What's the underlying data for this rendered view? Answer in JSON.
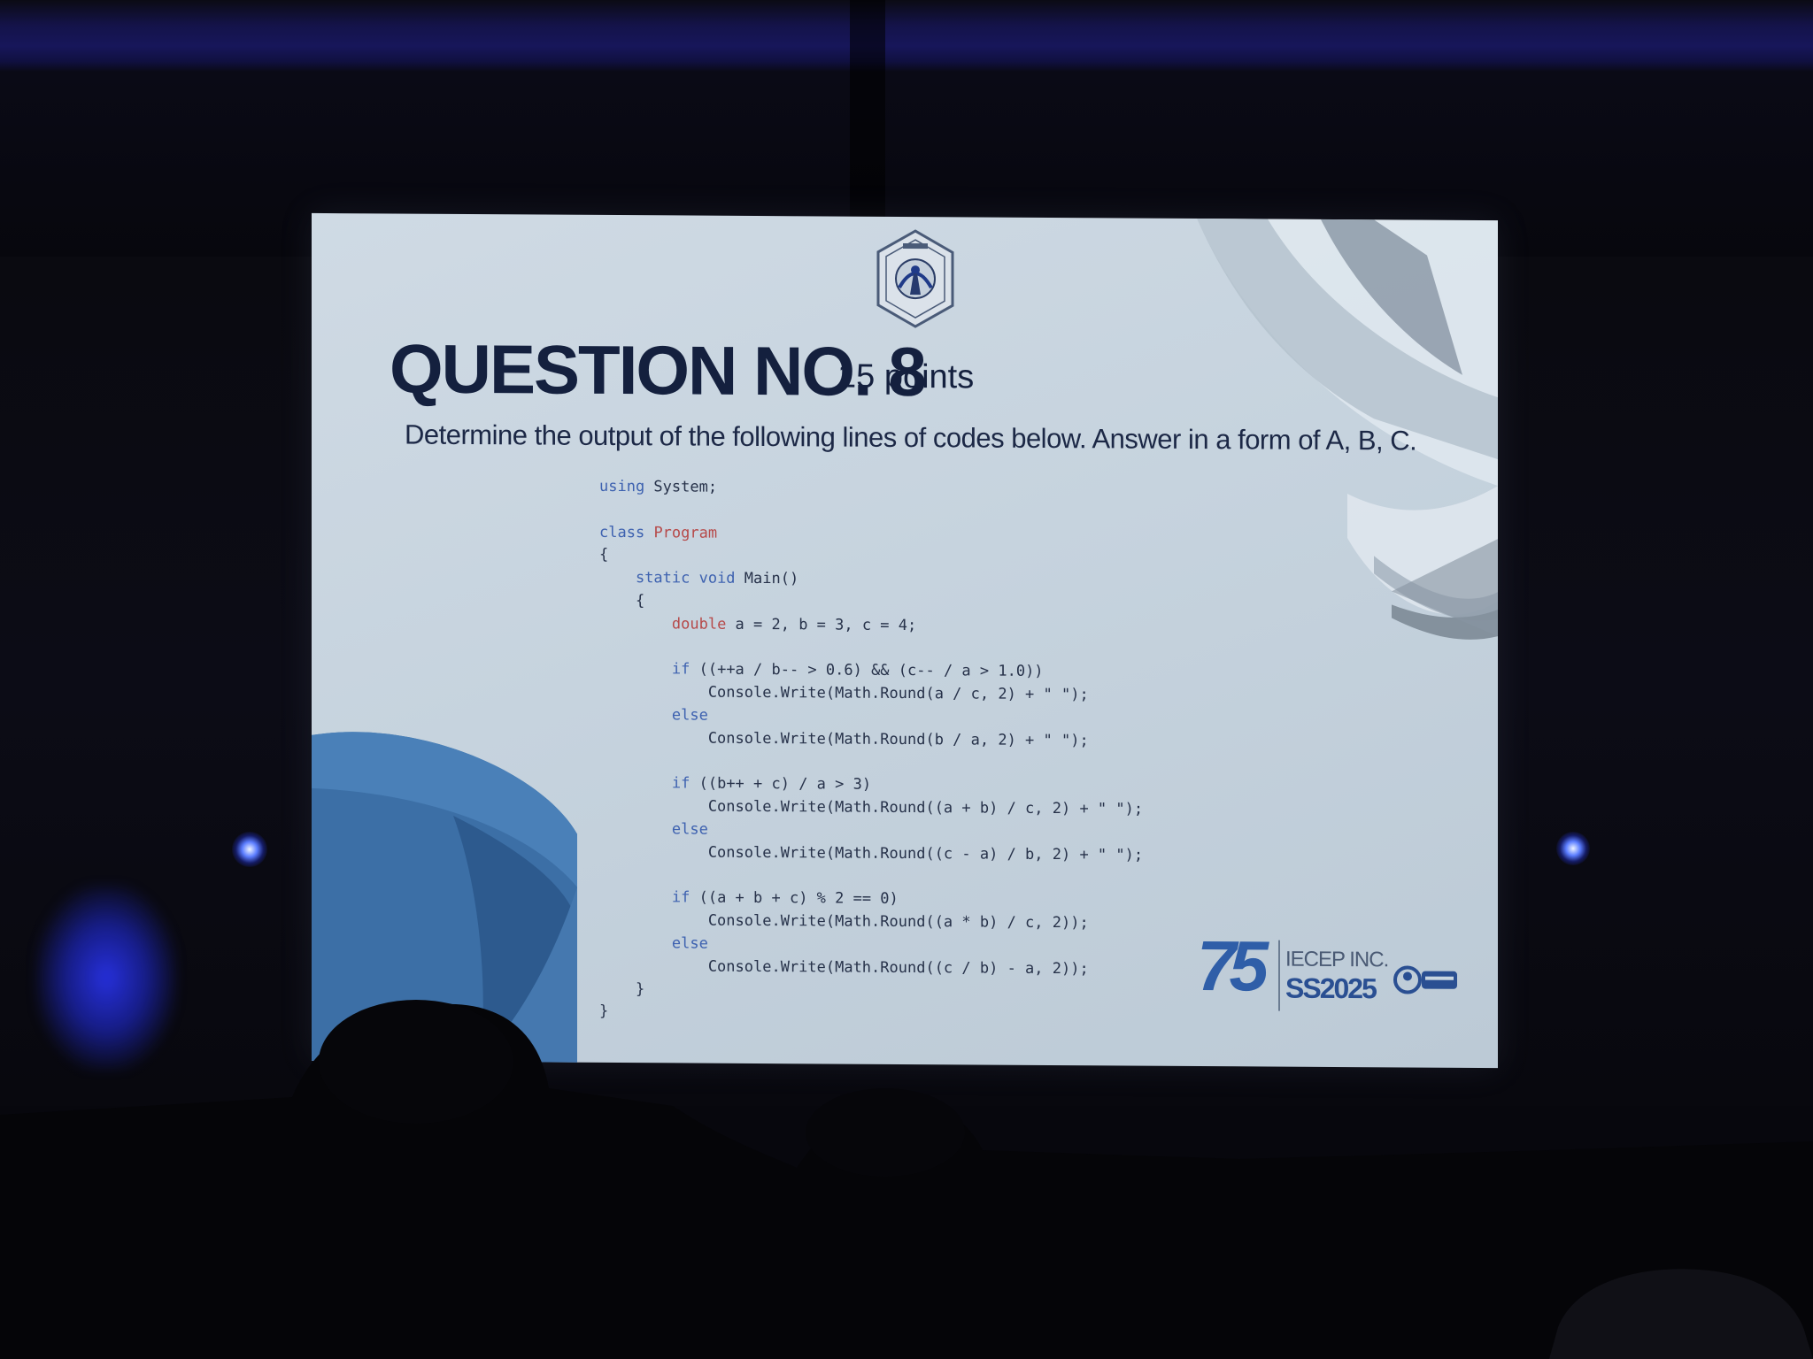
{
  "slide": {
    "title": "QUESTION NO. 8",
    "points": "15 points",
    "instruction": "Determine the output of the following lines of codes below. Answer in a form of A, B, C.",
    "code_lines": [
      [
        {
          "t": "using",
          "c": "kw"
        },
        {
          "t": " System;",
          "c": ""
        }
      ],
      [],
      [
        {
          "t": "class",
          "c": "kw"
        },
        {
          "t": " ",
          "c": ""
        },
        {
          "t": "Program",
          "c": "cls"
        }
      ],
      [
        {
          "t": "{",
          "c": ""
        }
      ],
      [
        {
          "t": "    ",
          "c": ""
        },
        {
          "t": "static void",
          "c": "kw"
        },
        {
          "t": " Main()",
          "c": ""
        }
      ],
      [
        {
          "t": "    {",
          "c": ""
        }
      ],
      [
        {
          "t": "        ",
          "c": ""
        },
        {
          "t": "double",
          "c": "lit"
        },
        {
          "t": " a = 2, b = 3, c = 4;",
          "c": ""
        }
      ],
      [],
      [
        {
          "t": "        ",
          "c": ""
        },
        {
          "t": "if",
          "c": "kw"
        },
        {
          "t": " ((++a / b-- > 0.6) && (c-- / a > 1.0))",
          "c": ""
        }
      ],
      [
        {
          "t": "            Console.Write(Math.Round(a / c, 2) + \" \");",
          "c": ""
        }
      ],
      [
        {
          "t": "        ",
          "c": ""
        },
        {
          "t": "else",
          "c": "kw"
        }
      ],
      [
        {
          "t": "            Console.Write(Math.Round(b / a, 2) + \" \");",
          "c": ""
        }
      ],
      [],
      [
        {
          "t": "        ",
          "c": ""
        },
        {
          "t": "if",
          "c": "kw"
        },
        {
          "t": " ((b++ + c) / a > 3)",
          "c": ""
        }
      ],
      [
        {
          "t": "            Console.Write(Math.Round((a + b) / c, 2) + \" \");",
          "c": ""
        }
      ],
      [
        {
          "t": "        ",
          "c": ""
        },
        {
          "t": "else",
          "c": "kw"
        }
      ],
      [
        {
          "t": "            Console.Write(Math.Round((c - a) / b, 2) + \" \");",
          "c": ""
        }
      ],
      [],
      [
        {
          "t": "        ",
          "c": ""
        },
        {
          "t": "if",
          "c": "kw"
        },
        {
          "t": " ((a + b + c) % 2 == 0)",
          "c": ""
        }
      ],
      [
        {
          "t": "            Console.Write(Math.Round((a * b) / c, 2));",
          "c": ""
        }
      ],
      [
        {
          "t": "        ",
          "c": ""
        },
        {
          "t": "else",
          "c": "kw"
        }
      ],
      [
        {
          "t": "            Console.Write(Math.Round((c / b) - a, 2));",
          "c": ""
        }
      ],
      [
        {
          "t": "    }",
          "c": ""
        }
      ],
      [
        {
          "t": "}",
          "c": ""
        }
      ]
    ]
  },
  "event_logo": {
    "number": "75",
    "org": "IECEP INC.",
    "event": "SS2025"
  },
  "colors": {
    "title": "#14203e",
    "keyword": "#3e62b0",
    "class_name": "#b64a4a",
    "accent_blue": "#2f5ea8",
    "screen": "#c8d5e0"
  }
}
